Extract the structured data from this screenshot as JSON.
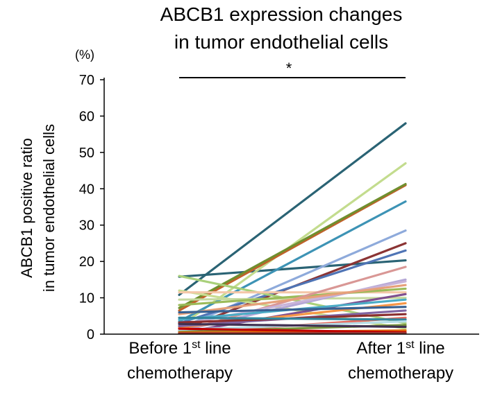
{
  "chart_data": {
    "type": "line",
    "title": [
      "ABCB1 expression changes",
      "in tumor endothelial cells"
    ],
    "ylabel": [
      "ABCB1 positive ratio",
      "in tumor endothelial cells"
    ],
    "yunit": "(%)",
    "ylim": [
      0,
      70
    ],
    "yticks": [
      0,
      10,
      20,
      30,
      40,
      50,
      60,
      70
    ],
    "categories": [
      {
        "base": "Before 1",
        "sup": "st",
        "rest": " line",
        "line2": "chemotherapy"
      },
      {
        "base": "After 1",
        "sup": "st",
        "rest": " line",
        "line2": "chemotherapy"
      }
    ],
    "significance": "*",
    "series": [
      {
        "values": [
          10.8,
          58.0
        ],
        "color": "#2a6374"
      },
      {
        "values": [
          15.8,
          20.3
        ],
        "color": "#2a6374"
      },
      {
        "values": [
          2.0,
          47.0
        ],
        "color": "#c3dc8e"
      },
      {
        "values": [
          6.5,
          41.0
        ],
        "color": "#c0622b"
      },
      {
        "values": [
          7.2,
          41.3
        ],
        "color": "#6f8f2e"
      },
      {
        "values": [
          3.5,
          36.5
        ],
        "color": "#3d93b5"
      },
      {
        "values": [
          1.5,
          28.5
        ],
        "color": "#8eaadb"
      },
      {
        "values": [
          1.0,
          25.0
        ],
        "color": "#8b3434"
      },
      {
        "values": [
          3.0,
          23.0
        ],
        "color": "#4f74b5"
      },
      {
        "values": [
          16.0,
          3.0
        ],
        "color": "#a9d07a"
      },
      {
        "values": [
          12.0,
          1.5
        ],
        "color": "#c9dd92"
      },
      {
        "values": [
          11.5,
          11.5
        ],
        "color": "#f4c7a8"
      },
      {
        "values": [
          9.5,
          10.0
        ],
        "color": "#c6d9a0"
      },
      {
        "values": [
          8.0,
          12.5
        ],
        "color": "#9bbb59"
      },
      {
        "values": [
          0.5,
          18.5
        ],
        "color": "#d99795"
      },
      {
        "values": [
          0.8,
          15.0
        ],
        "color": "#b4a7d6"
      },
      {
        "values": [
          2.5,
          14.5
        ],
        "color": "#c9b3d9"
      },
      {
        "values": [
          5.5,
          13.5
        ],
        "color": "#e6a07a"
      },
      {
        "values": [
          0.3,
          11.0
        ],
        "color": "#7f4f8f"
      },
      {
        "values": [
          4.0,
          9.5
        ],
        "color": "#4bacc6"
      },
      {
        "values": [
          1.8,
          8.5
        ],
        "color": "#f79646"
      },
      {
        "values": [
          6.0,
          7.5
        ],
        "color": "#376092"
      },
      {
        "values": [
          2.2,
          6.5
        ],
        "color": "#8064a2"
      },
      {
        "values": [
          3.2,
          5.5
        ],
        "color": "#8b2e2e"
      },
      {
        "values": [
          0.2,
          4.5
        ],
        "color": "#e26b5f"
      },
      {
        "values": [
          4.5,
          4.0
        ],
        "color": "#31859c"
      },
      {
        "values": [
          1.2,
          3.5
        ],
        "color": "#b7dee8"
      },
      {
        "values": [
          0.6,
          2.5
        ],
        "color": "#77933c"
      },
      {
        "values": [
          2.8,
          2.0
        ],
        "color": "#403151"
      },
      {
        "values": [
          0.4,
          1.0
        ],
        "color": "#e46c0a"
      },
      {
        "values": [
          1.5,
          0.5
        ],
        "color": "#c00000"
      },
      {
        "values": [
          0.2,
          0.3
        ],
        "color": "#953735"
      }
    ]
  }
}
